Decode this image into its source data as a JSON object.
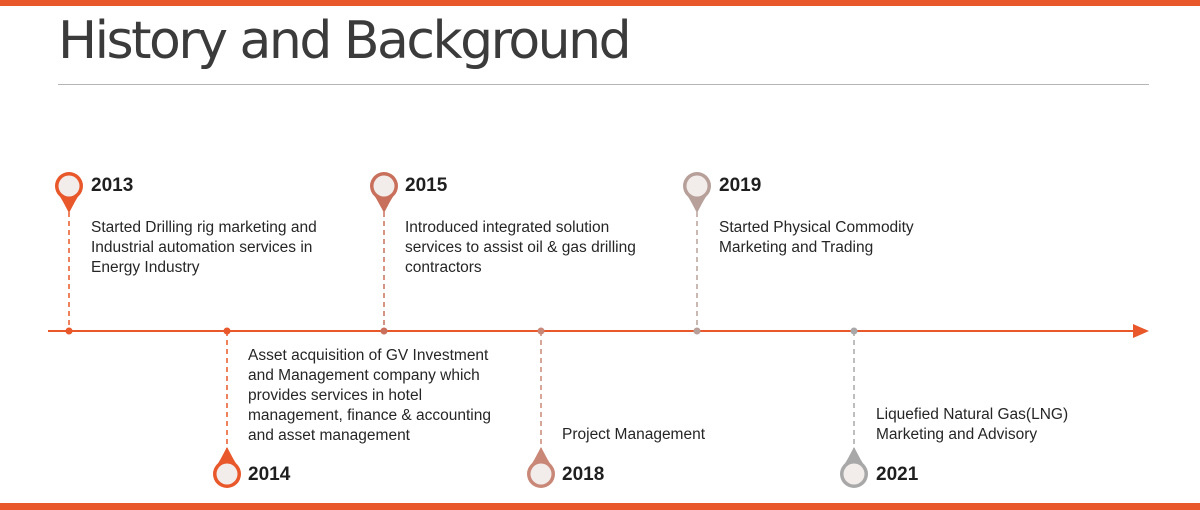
{
  "slide": {
    "title": "History and Background",
    "accent_color": "#E8582A"
  },
  "milestones": [
    {
      "year": "2013",
      "lines": [
        "Started Drilling rig marketing and",
        "Industrial automation services in",
        "Energy Industry"
      ],
      "pin_color": "#E8582A",
      "position": "above"
    },
    {
      "year": "2014",
      "lines": [
        "Asset acquisition of GV Investment",
        "and Management company which",
        "provides services in hotel",
        "management, finance & accounting",
        "and asset management"
      ],
      "pin_color": "#E8582A",
      "position": "below"
    },
    {
      "year": "2015",
      "lines": [
        "Introduced integrated solution",
        "services to assist oil & gas drilling",
        "contractors"
      ],
      "pin_color": "#C9705C",
      "position": "above"
    },
    {
      "year": "2018",
      "lines": [
        "Project Management"
      ],
      "pin_color": "#C98877",
      "position": "below"
    },
    {
      "year": "2019",
      "lines": [
        "Started Physical Commodity",
        "Marketing and Trading"
      ],
      "pin_color": "#B8A09A",
      "position": "above"
    },
    {
      "year": "2021",
      "lines": [
        "Liquefied Natural Gas(LNG)",
        "Marketing and Advisory"
      ],
      "pin_color": "#A8A8A8",
      "position": "below"
    }
  ]
}
